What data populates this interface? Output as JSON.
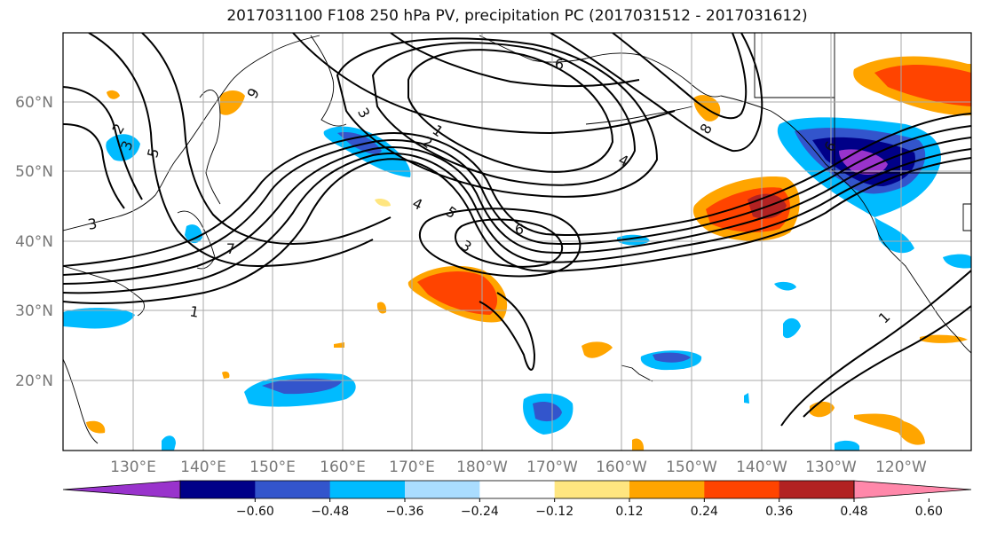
{
  "title": "2017031100 F108 250 hPa PV, precipitation PC (2017031512 - 2017031612)",
  "lat_labels": [
    "60°N",
    "50°N",
    "40°N",
    "30°N",
    "20°N"
  ],
  "lon_labels": [
    "130°E",
    "140°E",
    "150°E",
    "160°E",
    "170°E",
    "180°W",
    "170°W",
    "160°W",
    "150°W",
    "140°W",
    "130°W",
    "120°W"
  ],
  "colorbar": {
    "colors": [
      "#9933cc",
      "#000088",
      "#3355cc",
      "#00bbff",
      "#aaddff",
      "#ffffff",
      "#ffe680",
      "#ffa500",
      "#ff4400",
      "#b22222",
      "#ff88aa"
    ],
    "tick_labels": [
      "−0.60",
      "−0.48",
      "−0.36",
      "−0.24",
      "−0.12",
      "0.12",
      "0.24",
      "0.36",
      "0.48",
      "0.60"
    ]
  },
  "contour_labels": [
    "2",
    "3",
    "5",
    "7",
    "3",
    "1",
    "6",
    "3",
    "1",
    "2",
    "4",
    "5",
    "3",
    "6",
    "4",
    "9",
    "8",
    "1",
    "6"
  ],
  "colors": {
    "contour": "#000000",
    "grid": "#aaaaaa",
    "coast": "#000000"
  }
}
